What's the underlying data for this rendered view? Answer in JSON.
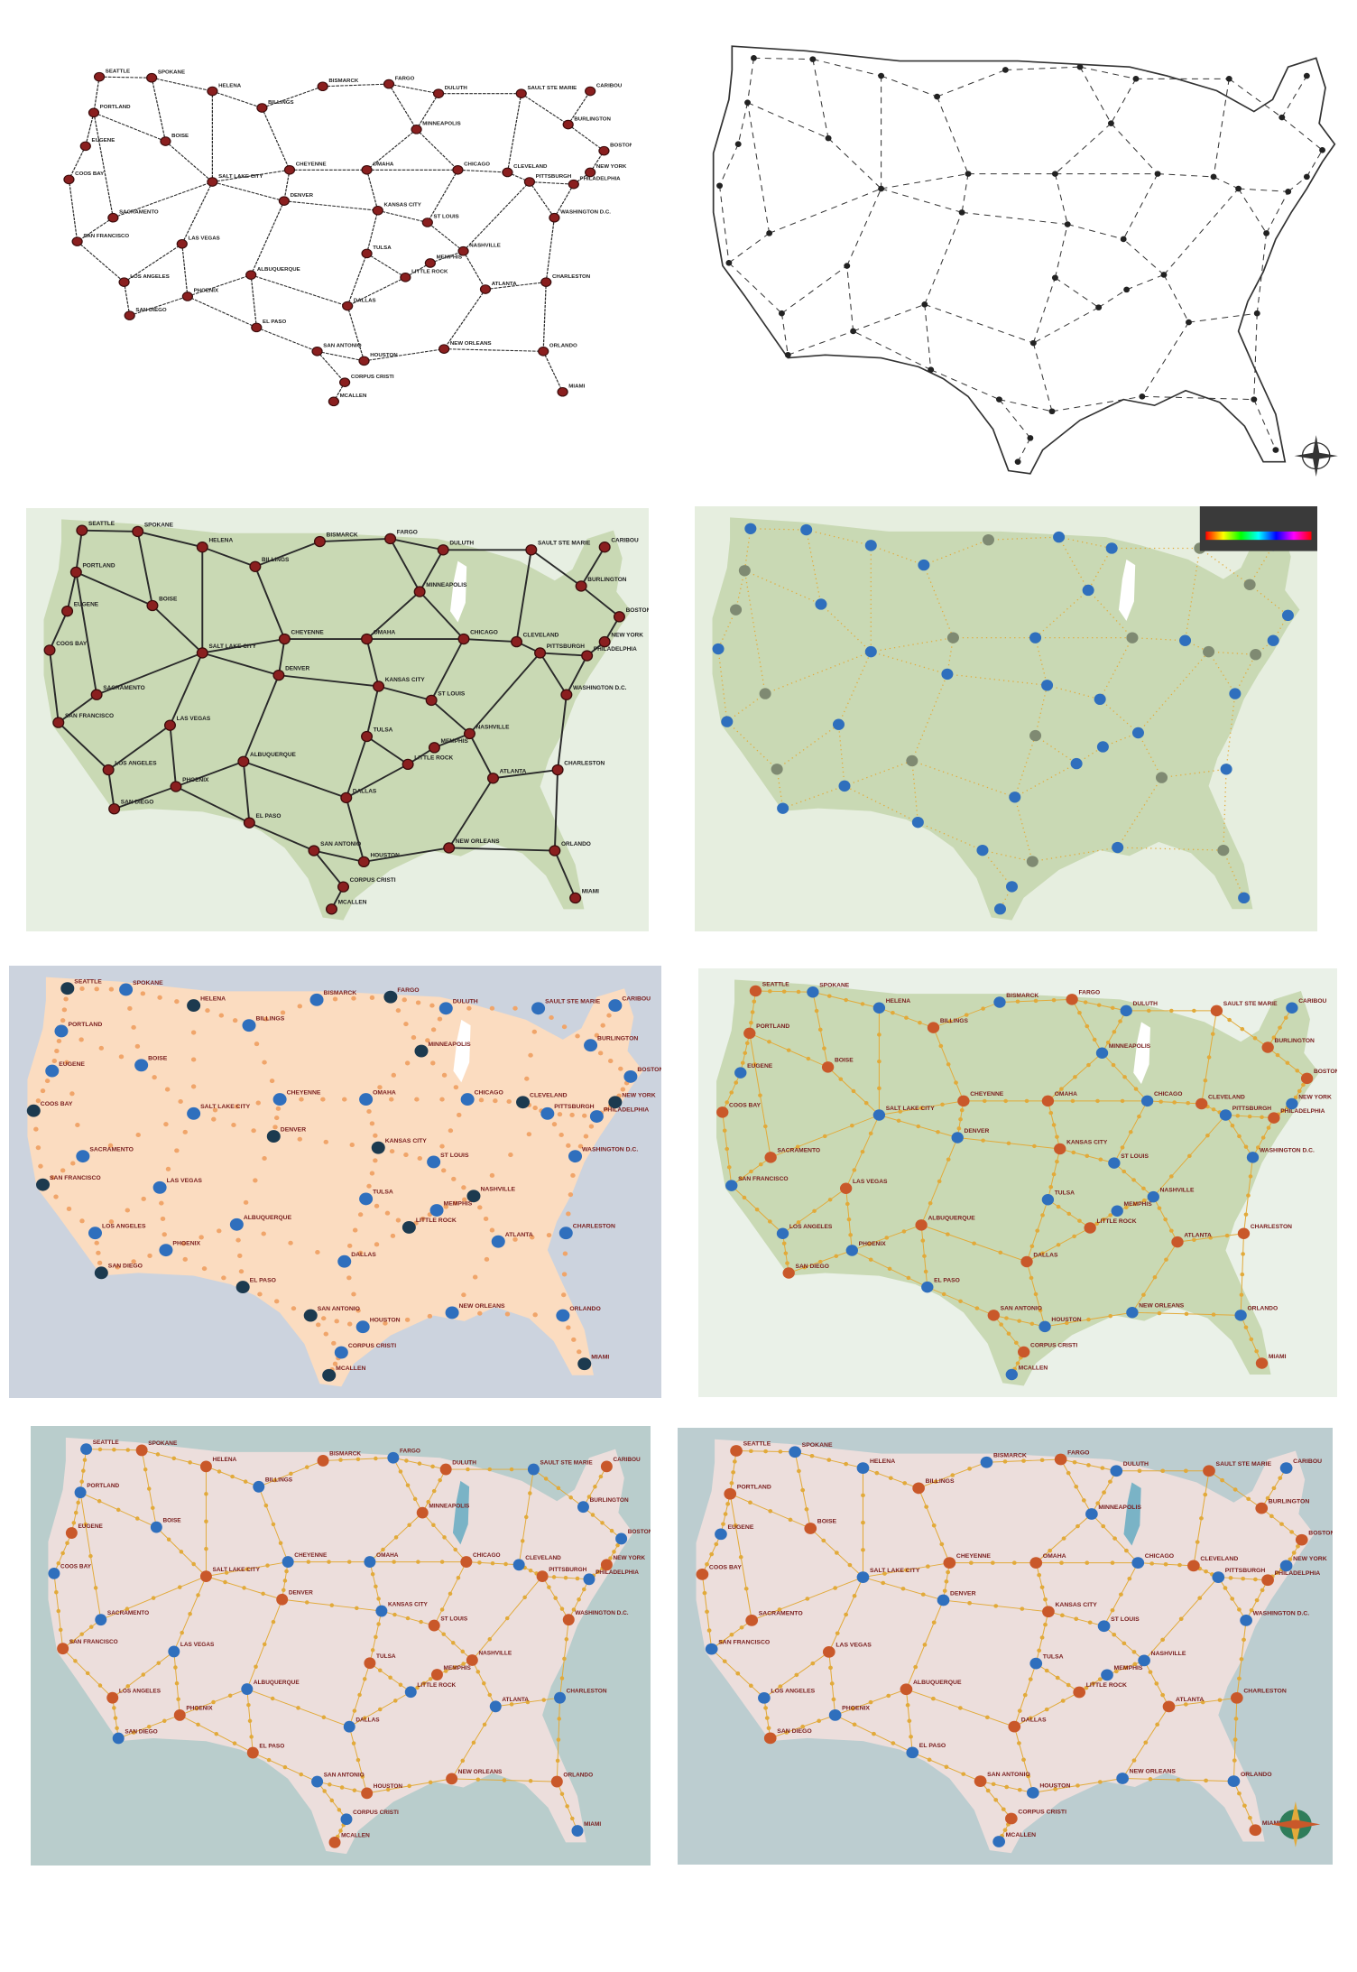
{
  "colors": {
    "page_bg": "#ffffff",
    "panel1_bg": "#ffffff",
    "panel3_bg": "#e7efe2",
    "panel4_bg": "#e6eedf",
    "panel5_bg": "#ccd3de",
    "panel6_bg": "#eaf1e8",
    "panel7_bg": "#b9cdcc",
    "panel8_bg": "#bccdd0",
    "land_green": "#c9d9b4",
    "land_peach": "#fbdcc0",
    "land_pink": "#ecdedc",
    "land_line": "#2e2e2e",
    "route_black": "#2a2a2a",
    "route_gold": "#e2aa3a",
    "dot_red": "#8a1f1f",
    "dot_blue": "#2f6fbd",
    "dot_grey": "#7f8a72",
    "dot_navy": "#1c3a4f",
    "dot_orange": "#c9582a",
    "lake_white": "#ffffff",
    "lake_blue": "#7ab3c6",
    "label_red": "#7a2020",
    "label_dark": "#222222"
  },
  "panels": [
    {
      "id": "panel-1",
      "style": "line-drawing-with-red-nodes"
    },
    {
      "id": "panel-2",
      "style": "hand-sketch"
    },
    {
      "id": "panel-3",
      "style": "green-with-red-nodes"
    },
    {
      "id": "panel-4",
      "style": "green-with-blue-nodes-editor"
    },
    {
      "id": "panel-5",
      "style": "peach-on-grey"
    },
    {
      "id": "panel-6",
      "style": "green-colored-routes"
    },
    {
      "id": "panel-7",
      "style": "pink-on-teal"
    },
    {
      "id": "panel-8",
      "style": "pink-on-blue-final"
    }
  ],
  "cities": [
    {
      "key": "seattle",
      "name": "SEATTLE"
    },
    {
      "key": "spokane",
      "name": "SPOKANE"
    },
    {
      "key": "portland",
      "name": "PORTLAND"
    },
    {
      "key": "helena",
      "name": "HELENA"
    },
    {
      "key": "billings",
      "name": "BILLINGS"
    },
    {
      "key": "bismarck",
      "name": "BISMARCK"
    },
    {
      "key": "fargo",
      "name": "FARGO"
    },
    {
      "key": "duluth",
      "name": "DULUTH"
    },
    {
      "key": "saultstemarie",
      "name": "SAULT STE MARIE"
    },
    {
      "key": "minneapolis",
      "name": "MINNEAPOLIS"
    },
    {
      "key": "boise",
      "name": "BOISE"
    },
    {
      "key": "eugene",
      "name": "EUGENE"
    },
    {
      "key": "coosbay",
      "name": "COOS BAY"
    },
    {
      "key": "saltlake",
      "name": "SALT LAKE CITY"
    },
    {
      "key": "cheyenne",
      "name": "CHEYENNE"
    },
    {
      "key": "denver",
      "name": "DENVER"
    },
    {
      "key": "omaha",
      "name": "OMAHA"
    },
    {
      "key": "chicago",
      "name": "CHICAGO"
    },
    {
      "key": "kansascity",
      "name": "KANSAS CITY"
    },
    {
      "key": "stlouis",
      "name": "ST LOUIS"
    },
    {
      "key": "sacramento",
      "name": "SACRAMENTO"
    },
    {
      "key": "sanfrancisco",
      "name": "SAN FRANCISCO"
    },
    {
      "key": "lasvegas",
      "name": "LAS VEGAS"
    },
    {
      "key": "losangeles",
      "name": "LOS ANGELES"
    },
    {
      "key": "sandiego",
      "name": "SAN DIEGO"
    },
    {
      "key": "phoenix",
      "name": "PHOENIX"
    },
    {
      "key": "albuquerque",
      "name": "ALBUQUERQUE"
    },
    {
      "key": "elpaso",
      "name": "EL PASO"
    },
    {
      "key": "dallas",
      "name": "DALLAS"
    },
    {
      "key": "houston",
      "name": "HOUSTON"
    },
    {
      "key": "sanantonio",
      "name": "SAN ANTONIO"
    },
    {
      "key": "neworleans",
      "name": "NEW ORLEANS"
    },
    {
      "key": "atlanta",
      "name": "ATLANTA"
    },
    {
      "key": "nashville",
      "name": "NASHVILLE"
    },
    {
      "key": "charleston",
      "name": "CHARLESTON"
    },
    {
      "key": "orlando",
      "name": "ORLANDO"
    },
    {
      "key": "miami",
      "name": "MIAMI"
    },
    {
      "key": "washington",
      "name": "WASHINGTON D.C."
    },
    {
      "key": "philadelphia",
      "name": "PHILADELPHIA"
    },
    {
      "key": "newyork",
      "name": "NEW YORK"
    },
    {
      "key": "boston",
      "name": "BOSTON"
    },
    {
      "key": "pittsburgh",
      "name": "PITTSBURGH"
    },
    {
      "key": "cleveland",
      "name": "CLEVELAND"
    },
    {
      "key": "caribou",
      "name": "CARIBOU"
    },
    {
      "key": "burlington",
      "name": "BURLINGTON"
    },
    {
      "key": "mcallen",
      "name": "MCALLEN"
    },
    {
      "key": "corpuschristi",
      "name": "CORPUS CRISTI"
    },
    {
      "key": "tulsa",
      "name": "TULSA"
    },
    {
      "key": "littlerock",
      "name": "LITTLE ROCK"
    },
    {
      "key": "memphis",
      "name": "MEMPHIS"
    }
  ]
}
